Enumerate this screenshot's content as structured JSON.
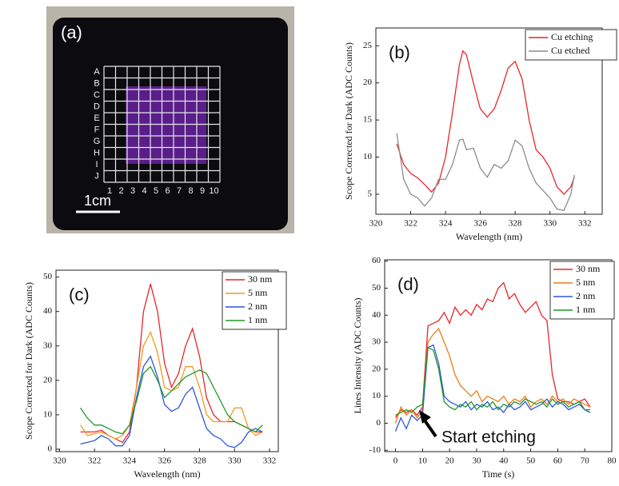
{
  "photo": {
    "label": "(a)",
    "row_labels": [
      "A",
      "B",
      "C",
      "D",
      "E",
      "F",
      "G",
      "H",
      "I",
      "J"
    ],
    "col_labels": [
      "1",
      "2",
      "3",
      "4",
      "5",
      "6",
      "7",
      "8",
      "9",
      "10"
    ],
    "scale_label": "1cm"
  },
  "chart_data": [
    {
      "type": "line",
      "panel_label": "(b)",
      "xlabel": "Wavelength (nm)",
      "ylabel": "Scope Corrected for Dark (ADC Counts)",
      "x": [
        321.2,
        321.6,
        322,
        322.4,
        322.8,
        323.2,
        323.6,
        324,
        324.4,
        324.8,
        325,
        325.2,
        325.6,
        326,
        326.4,
        326.8,
        327.2,
        327.6,
        328,
        328.4,
        328.8,
        329.2,
        329.6,
        330,
        330.4,
        330.8,
        331.2,
        331.4
      ],
      "series": [
        {
          "name": "Cu etching",
          "color": "#e8262a",
          "values": [
            11.8,
            9,
            7.8,
            7.2,
            6.3,
            5.3,
            6.5,
            10,
            16,
            22.5,
            24.3,
            23.8,
            20,
            16.5,
            15.4,
            16.5,
            19,
            22,
            22.9,
            20.5,
            15,
            11,
            10,
            8.5,
            6,
            5,
            6,
            7.3
          ]
        },
        {
          "name": "Cu etched",
          "color": "#8c8c8c",
          "values": [
            13.2,
            7,
            5,
            4.5,
            3.4,
            4.5,
            7,
            7,
            9,
            12.3,
            12.4,
            11,
            11.2,
            8.5,
            7.3,
            9,
            8.5,
            9.5,
            12.3,
            11.5,
            8.5,
            6.5,
            5.5,
            4.5,
            3,
            2.8,
            5,
            7.6
          ]
        }
      ],
      "xlim": [
        320,
        333
      ],
      "ylim": [
        2.3,
        27.4
      ],
      "xticks": [
        320,
        322,
        324,
        326,
        328,
        330,
        332
      ],
      "yticks": [
        5,
        10,
        15,
        20,
        25
      ],
      "legend": "upper right"
    },
    {
      "type": "line",
      "panel_label": "(c)",
      "xlabel": "Wavelength (nm)",
      "ylabel": "Scope Corrected for Dark (ADC Counts)",
      "x": [
        321.2,
        321.6,
        322,
        322.4,
        322.8,
        323.2,
        323.6,
        324,
        324.4,
        324.8,
        325.2,
        325.6,
        326,
        326.4,
        326.8,
        327.2,
        327.6,
        328,
        328.4,
        328.8,
        329.2,
        329.6,
        330,
        330.4,
        330.8,
        331.2,
        331.6
      ],
      "series": [
        {
          "name": "30 nm",
          "color": "#e8262a",
          "values": [
            5,
            5,
            5,
            5.5,
            4,
            3,
            2,
            5,
            18,
            40,
            48,
            40,
            25,
            18,
            22,
            30,
            35,
            27,
            15,
            10,
            8,
            8,
            8,
            7,
            6,
            5,
            5
          ]
        },
        {
          "name": "5 nm",
          "color": "#f39a1e",
          "values": [
            7,
            4,
            4.5,
            5,
            4,
            3,
            4,
            7,
            18,
            30,
            34,
            28,
            18,
            17,
            18,
            24,
            24,
            18,
            10,
            8,
            8,
            8,
            12,
            12,
            6,
            4,
            5
          ]
        },
        {
          "name": "2 nm",
          "color": "#2f55e0",
          "values": [
            1.5,
            2,
            2.5,
            4,
            3,
            1,
            1,
            4,
            15,
            24,
            27,
            21,
            13,
            11,
            12,
            16,
            18,
            12,
            6,
            4,
            3,
            1,
            0.5,
            2,
            5,
            6,
            5
          ]
        },
        {
          "name": "1 nm",
          "color": "#1f9a2a",
          "values": [
            12,
            9,
            7,
            7,
            6,
            5,
            4.5,
            7,
            14,
            22,
            24,
            20,
            15,
            17,
            19,
            21,
            22,
            23,
            22,
            18,
            14,
            10,
            8,
            7,
            6,
            5,
            7
          ]
        }
      ],
      "xlim": [
        319.8,
        332.5
      ],
      "ylim": [
        -0.7,
        52
      ],
      "xticks": [
        320,
        322,
        324,
        326,
        328,
        330,
        332
      ],
      "yticks": [
        0,
        10,
        20,
        30,
        40,
        50
      ],
      "legend": "upper right"
    },
    {
      "type": "line",
      "panel_label": "(d)",
      "xlabel": "Time (s)",
      "ylabel": "Lines Intensity  (ADC Counts)",
      "annotation": "Start etching",
      "x": [
        0,
        2,
        4,
        6,
        8,
        10,
        12,
        14,
        16,
        18,
        20,
        22,
        24,
        26,
        28,
        30,
        32,
        34,
        36,
        38,
        40,
        42,
        44,
        46,
        48,
        50,
        52,
        54,
        56,
        58,
        60,
        62,
        64,
        66,
        68,
        70,
        72
      ],
      "series": [
        {
          "name": "30 nm",
          "color": "#e8262a",
          "values": [
            2,
            5,
            4,
            5,
            3,
            6,
            36,
            37,
            38,
            41,
            37,
            43,
            40,
            42,
            40,
            44,
            42,
            46,
            45,
            50,
            52,
            46,
            48,
            44,
            41,
            43,
            45,
            40,
            38,
            18,
            9,
            8,
            8,
            7,
            8,
            9,
            6
          ]
        },
        {
          "name": "5 nm",
          "color": "#f07d14",
          "values": [
            0,
            6,
            3,
            5,
            2,
            5,
            30,
            33,
            35,
            30,
            25,
            18,
            14,
            12,
            10,
            12,
            8,
            10,
            9,
            8,
            10,
            7,
            9,
            8,
            10,
            6,
            8,
            9,
            7,
            10,
            8,
            9,
            7,
            9,
            8,
            7,
            6
          ]
        },
        {
          "name": "2 nm",
          "color": "#2f55e0",
          "values": [
            -3,
            2,
            -2,
            3,
            1,
            3,
            28,
            29,
            22,
            10,
            8,
            7,
            6,
            8,
            5,
            7,
            6,
            8,
            5,
            6,
            4,
            7,
            5,
            6,
            8,
            5,
            6,
            7,
            9,
            6,
            8,
            7,
            5,
            6,
            7,
            5,
            4
          ]
        },
        {
          "name": "1 nm",
          "color": "#1f9a2a",
          "values": [
            3,
            4,
            5,
            4,
            6,
            7,
            28,
            27,
            20,
            8,
            6,
            5,
            7,
            6,
            8,
            5,
            7,
            6,
            8,
            5,
            7,
            6,
            8,
            7,
            9,
            8,
            7,
            8,
            6,
            9,
            7,
            8,
            6,
            7,
            8,
            5,
            5
          ]
        }
      ],
      "xlim": [
        -4,
        80
      ],
      "ylim": [
        -10.5,
        60.5
      ],
      "xticks": [
        0,
        10,
        20,
        30,
        40,
        50,
        60,
        70,
        80
      ],
      "yticks": [
        -10,
        0,
        10,
        20,
        30,
        40,
        50,
        60
      ],
      "legend": "upper right"
    }
  ]
}
